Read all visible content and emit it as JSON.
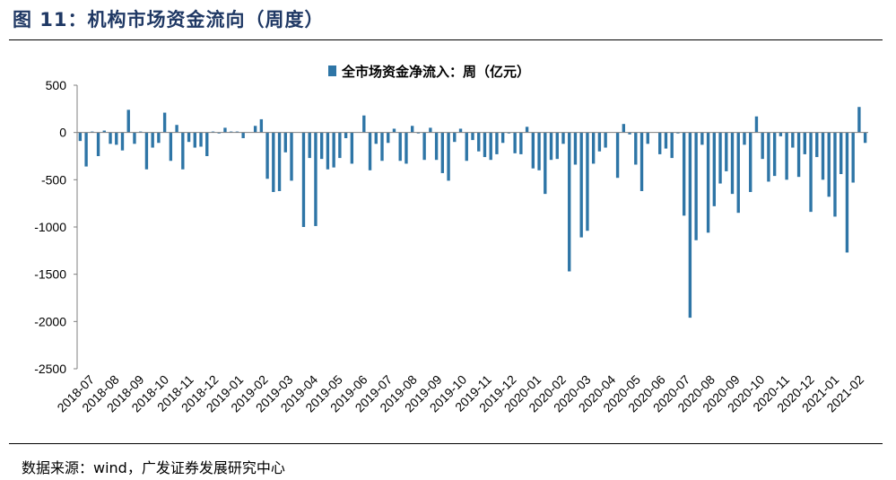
{
  "figure_title": "图 11：机构市场资金流向（周度）",
  "source_text": "数据来源：wind，广发证券发展研究中心",
  "chart_data": {
    "type": "bar",
    "series_name": "全市场资金净流入：周（亿元）",
    "color": "#2e75a6",
    "ylim": [
      -2500,
      500
    ],
    "yticks": [
      500,
      0,
      -500,
      -1000,
      -1500,
      -2000,
      -2500
    ],
    "month_labels": [
      "2018-07",
      "2018-08",
      "2018-09",
      "2018-10",
      "2018-11",
      "2018-12",
      "2019-01",
      "2019-02",
      "2019-03",
      "2019-04",
      "2019-05",
      "2019-06",
      "2019-07",
      "2019-08",
      "2019-09",
      "2019-10",
      "2019-11",
      "2019-12",
      "2020-01",
      "2020-02",
      "2020-03",
      "2020-04",
      "2020-05",
      "2020-06",
      "2020-07",
      "2020-08",
      "2020-09",
      "2020-10",
      "2020-11",
      "2020-12",
      "2021-01",
      "2021-02"
    ],
    "values": [
      -90,
      -360,
      10,
      -250,
      20,
      -120,
      -130,
      -190,
      240,
      -120,
      10,
      -390,
      -160,
      -110,
      210,
      -300,
      80,
      -390,
      -100,
      -160,
      -150,
      -250,
      10,
      -10,
      50,
      10,
      10,
      -60,
      0,
      70,
      140,
      -490,
      -630,
      -620,
      -210,
      -510,
      0,
      -1000,
      -270,
      -990,
      -280,
      -390,
      -370,
      -270,
      -60,
      -330,
      0,
      180,
      -400,
      -120,
      -300,
      -110,
      40,
      -300,
      -330,
      70,
      -10,
      -290,
      50,
      -290,
      -430,
      -510,
      -100,
      40,
      -300,
      -80,
      -200,
      -260,
      -290,
      -230,
      -110,
      -10,
      -220,
      -230,
      60,
      -380,
      -400,
      -650,
      -290,
      -280,
      -120,
      -1470,
      -340,
      -1110,
      -1040,
      -330,
      -200,
      -160,
      0,
      -480,
      90,
      -20,
      -340,
      -620,
      -120,
      0,
      -230,
      -170,
      -270,
      -10,
      -880,
      -1960,
      -1140,
      -130,
      -1060,
      -780,
      -540,
      -410,
      -650,
      -850,
      -130,
      -630,
      170,
      -280,
      -520,
      -460,
      -40,
      -500,
      -160,
      -470,
      -230,
      -840,
      -260,
      -500,
      -680,
      -890,
      -440,
      -1270,
      -530,
      270,
      -110
    ]
  }
}
